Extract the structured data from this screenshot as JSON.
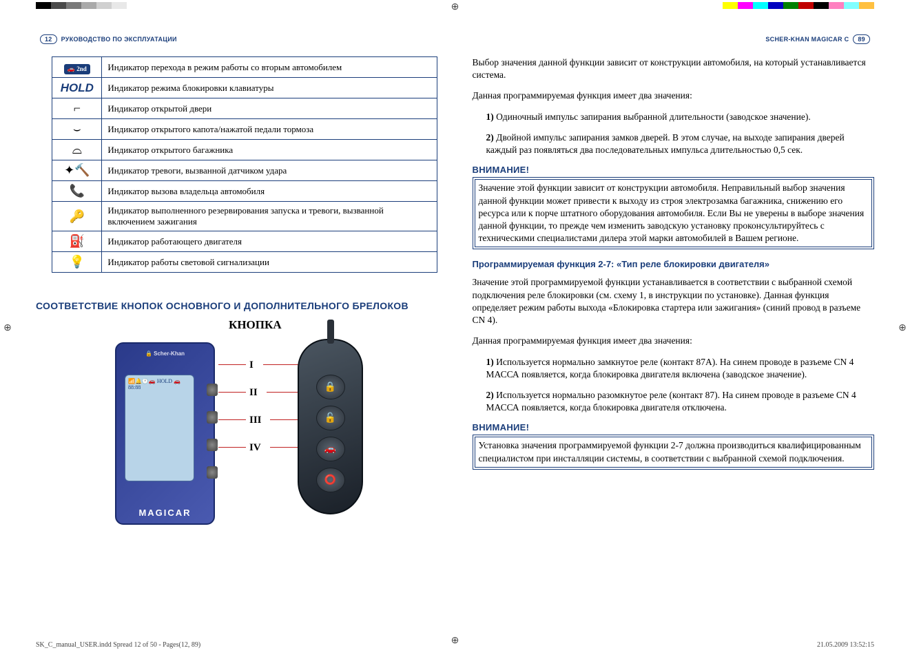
{
  "colorbars_left": [
    "#000000",
    "#4a4a4a",
    "#7a7a7a",
    "#aaaaaa",
    "#d0d0d0",
    "#e8e8e8",
    "#ffffff",
    "#ffffff",
    "#ffffff",
    "#ffffff"
  ],
  "colorbars_right": [
    "#ffff00",
    "#ff00ff",
    "#00ffff",
    "#0000c0",
    "#008000",
    "#c00000",
    "#000000",
    "#ff80c0",
    "#80ffff",
    "#ffc040"
  ],
  "left_header": {
    "page": "12",
    "title": "РУКОВОДСТВО ПО ЭКСПЛУАТАЦИИ"
  },
  "right_header": {
    "title": "SCHER-KHAN MAGICAR C",
    "page": "89"
  },
  "table_rows": [
    {
      "icon": "2nd",
      "text": "Индикатор перехода в режим работы со вторым автомобилем"
    },
    {
      "icon": "HOLD",
      "text": "Индикатор режима блокировки клавиатуры"
    },
    {
      "icon": "door",
      "text": "Индикатор открытой двери"
    },
    {
      "icon": "hood",
      "text": "Индикатор открытого капота/нажатой педали тормоза"
    },
    {
      "icon": "trunk",
      "text": "Индикатор открытого багажника"
    },
    {
      "icon": "shock",
      "text": "Индикатор тревоги, вызванной датчиком удара"
    },
    {
      "icon": "call",
      "text": "Индикатор вызова владельца автомобиля"
    },
    {
      "icon": "key",
      "text": "Индикатор выполненного резервирования запуска и тревоги, вызванной включением зажигания"
    },
    {
      "icon": "engine",
      "text": "Индикатор работающего двигателя"
    },
    {
      "icon": "light",
      "text": "Индикатор работы световой сигнализации"
    }
  ],
  "section2_title": "СООТВЕТСТВИЕ КНОПОК ОСНОВНОГО И ДОПОЛНИТЕЛЬНОГО БРЕЛОКОВ",
  "diagram": {
    "knopka": "КНОПКА",
    "romans": [
      "I",
      "II",
      "III",
      "IV"
    ],
    "pager_brand": "🔒 Scher-Khan",
    "pager_model": "MAGICAR",
    "screen_text": "📶🔔🕐🚗\nHOLD\n🚗\n88:88",
    "fob_icons": [
      "🔒",
      "🔓",
      "🚗",
      "⭕"
    ]
  },
  "right_page": {
    "p1": "Выбор значения данной функции зависит от конструкции автомобиля, на который устанавливается система.",
    "p2": "Данная программируемая функция имеет два значения:",
    "list1_1n": "1) ",
    "list1_1": "Одиночный импульс запирания выбранной длительности (заводское значение).",
    "list1_2n": "2) ",
    "list1_2": "Двойной импульс запирания замков дверей. В этом случае, на выходе запирания дверей каждый раз появляться два последовательных импульса длительностью 0,5 сек.",
    "warn1_head": "ВНИМАНИЕ!",
    "warn1_text": "Значение этой функции зависит от конструкции автомобиля. Неправильный выбор значения данной функции может привести к выходу из строя электрозамка багажника, снижению его ресурса или к порче штатного оборудования автомобиля. Если Вы не уверены в выборе значения данной функции, то прежде чем изменить заводскую установку проконсультируйтесь с техническими специалистами дилера этой марки автомобилей в Вашем регионе.",
    "func_head": "Программируемая функция 2-7: «Тип реле блокировки двигателя»",
    "p3": "Значение этой программируемой функции устанавливается в соответствии с выбранной схемой подключения реле блокировки (см. схему 1, в инструкции по установке). Данная функция определяет режим работы выхода «Блокировка стартера или зажигания» (синий провод в разъеме CN 4).",
    "p4": "Данная программируемая функция имеет два значения:",
    "list2_1n": "1) ",
    "list2_1": "Используется нормально замкнутое реле (контакт 87А). На синем проводе в разъеме CN 4 МАССА появляется, когда блокировка двигателя включена (заводское значение).",
    "list2_2n": "2) ",
    "list2_2": "Используется нормально разомкнутое реле (контакт 87). На синем проводе в разъеме CN 4 МАССА появляется, когда блокировка двигателя отключена.",
    "warn2_head": "ВНИМАНИЕ!",
    "warn2_text": "Установка значения программируемой функции 2-7 должна производиться квалифицированным специалистом при инсталляции системы, в соответствии с выбранной схемой подключения."
  },
  "footer": {
    "left": "SK_C_manual_USER.indd   Spread 12 of 50 - Pages(12, 89)",
    "right": "21.05.2009   13:52:15"
  },
  "icon_glyphs": {
    "door": "⌐",
    "hood": "⌣",
    "trunk": "⌓",
    "shock": "✦🔨",
    "call": "📞",
    "key": "🔑",
    "engine": "⛽",
    "light": "💡"
  }
}
